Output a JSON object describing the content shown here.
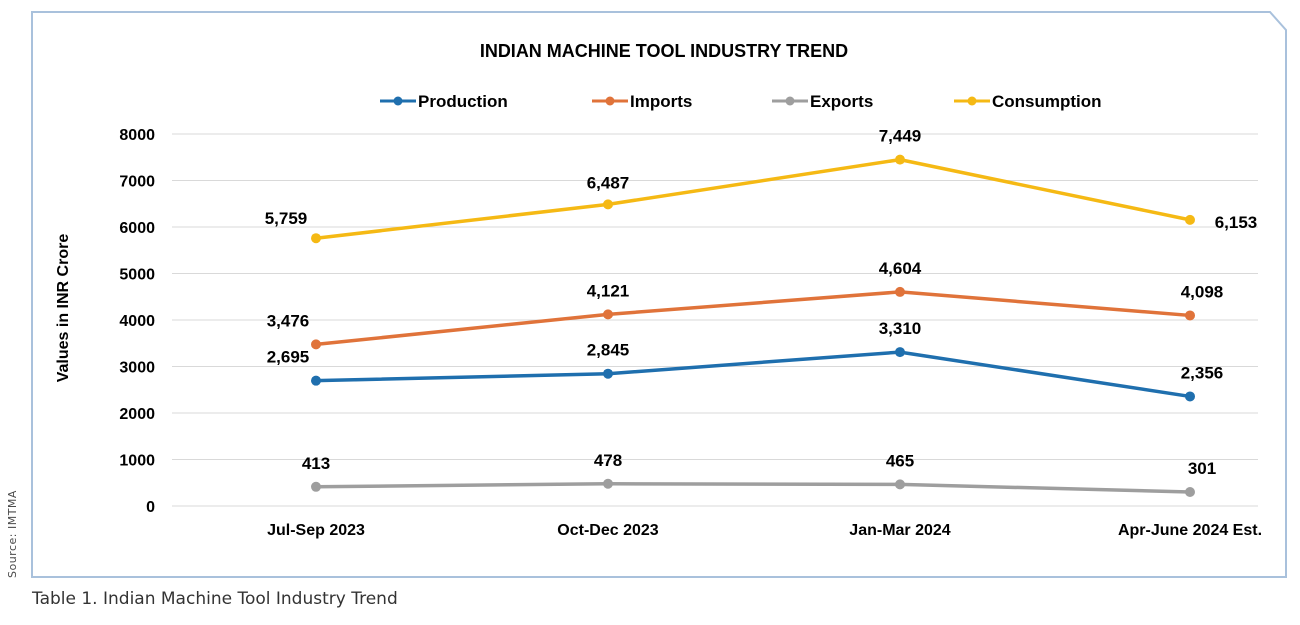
{
  "source_text": "Source: IMTMA",
  "caption": "Table 1. Indian Machine Tool Industry Trend",
  "colors": {
    "frame_border": "#a9c1dc",
    "grid": "#d9d9d9",
    "text": "#000000"
  },
  "chart_data": {
    "type": "line",
    "title": "INDIAN MACHINE TOOL INDUSTRY TREND",
    "xlabel": "",
    "ylabel": "Values in INR Crore",
    "ylim": [
      0,
      8000
    ],
    "yticks": [
      0,
      1000,
      2000,
      3000,
      4000,
      5000,
      6000,
      7000,
      8000
    ],
    "grid": true,
    "legend_position": "top",
    "categories": [
      "Jul-Sep 2023",
      "Oct-Dec 2023",
      "Jan-Mar 2024",
      "Apr-June 2024 Est."
    ],
    "series": [
      {
        "name": "Production",
        "color": "#1f6fae",
        "values": [
          2695,
          2845,
          3310,
          2356
        ],
        "labels": [
          "2,695",
          "2,845",
          "3,310",
          "2,356"
        ]
      },
      {
        "name": "Imports",
        "color": "#e0733a",
        "values": [
          3476,
          4121,
          4604,
          4098
        ],
        "labels": [
          "3,476",
          "4,121",
          "4,604",
          "4,098"
        ]
      },
      {
        "name": "Exports",
        "color": "#9e9e9e",
        "values": [
          413,
          478,
          465,
          301
        ],
        "labels": [
          "413",
          "478",
          "465",
          "301"
        ]
      },
      {
        "name": "Consumption",
        "color": "#f5b914",
        "values": [
          5759,
          6487,
          7449,
          6153
        ],
        "labels": [
          "5,759",
          "6,487",
          "7,449",
          "6,153"
        ]
      }
    ]
  }
}
